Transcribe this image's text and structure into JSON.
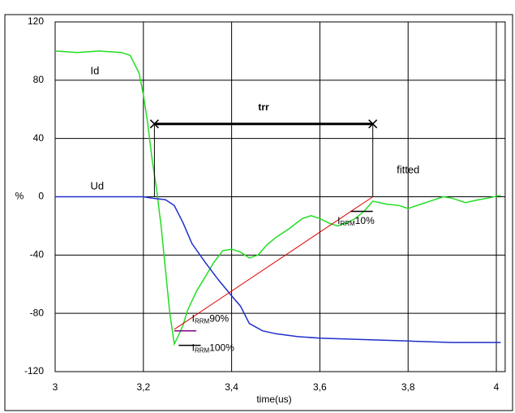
{
  "chart_data": {
    "type": "line",
    "xlabel": "time(us)",
    "ylabel": "%",
    "xlim": [
      3,
      4.02
    ],
    "ylim": [
      -120,
      120
    ],
    "xticks": [
      3,
      {
        "value": 3.2,
        "label": "3,2"
      },
      {
        "value": 3.4,
        "label": "3,4"
      },
      {
        "value": 3.6,
        "label": "3,6"
      },
      {
        "value": 3.8,
        "label": "3,8"
      },
      4
    ],
    "yticks": [
      -120,
      -80,
      -40,
      0,
      40,
      80,
      120
    ],
    "grid": true,
    "series": [
      {
        "name": "Id",
        "color": "#22dd22",
        "x": [
          3,
          3.05,
          3.1,
          3.15,
          3.17,
          3.19,
          3.2,
          3.21,
          3.22,
          3.23,
          3.24,
          3.25,
          3.26,
          3.27,
          3.28,
          3.29,
          3.3,
          3.32,
          3.34,
          3.36,
          3.38,
          3.4,
          3.42,
          3.44,
          3.46,
          3.48,
          3.5,
          3.53,
          3.56,
          3.58,
          3.6,
          3.62,
          3.64,
          3.66,
          3.68,
          3.7,
          3.72,
          3.75,
          3.78,
          3.8,
          3.83,
          3.86,
          3.88,
          3.9,
          3.93,
          3.96,
          3.98,
          4.01
        ],
        "values": [
          100,
          99,
          100,
          99,
          97,
          85,
          70,
          50,
          25,
          5,
          -20,
          -50,
          -80,
          -101,
          -95,
          -88,
          -78,
          -65,
          -55,
          -45,
          -37,
          -36,
          -38,
          -42,
          -40,
          -33,
          -28,
          -22,
          -15,
          -13,
          -15,
          -18,
          -20,
          -18,
          -15,
          -10,
          -3,
          -5,
          -6,
          -8,
          -5,
          -2,
          0,
          -1,
          -4,
          -2,
          -1,
          1
        ]
      },
      {
        "name": "Ud",
        "color": "#1f2fcc",
        "x": [
          3,
          3.1,
          3.2,
          3.22,
          3.25,
          3.27,
          3.29,
          3.31,
          3.34,
          3.37,
          3.4,
          3.42,
          3.44,
          3.47,
          3.5,
          3.55,
          3.6,
          3.7,
          3.8,
          3.9,
          4.01
        ],
        "values": [
          0,
          0,
          0,
          -1,
          -2,
          -6,
          -18,
          -32,
          -45,
          -57,
          -68,
          -75,
          -87,
          -92,
          -94,
          -96,
          -97,
          -98,
          -99,
          -100,
          -100
        ]
      },
      {
        "name": "fitted",
        "color": "#dd0000",
        "x": [
          3.27,
          3.72
        ],
        "values": [
          -91,
          0
        ]
      }
    ],
    "trr": {
      "text": "trr",
      "x_start": 3.225,
      "x_end": 3.72,
      "y": 50,
      "y_base": 0
    },
    "markers": [
      {
        "main": "I",
        "sub": "RRM",
        "suffix": "90%",
        "level": -92,
        "x_start": 3.27,
        "x_end": 3.32,
        "color": "#800080"
      },
      {
        "main": "I",
        "sub": "RRM",
        "suffix": "100%",
        "level": -102,
        "x_start": 3.28,
        "x_end": 3.33,
        "color": "#000000"
      },
      {
        "main": "I",
        "sub": "RRM",
        "suffix": "10%",
        "level": -10,
        "x_start": 3.67,
        "x_end": 3.72,
        "color": "#000000"
      }
    ]
  }
}
